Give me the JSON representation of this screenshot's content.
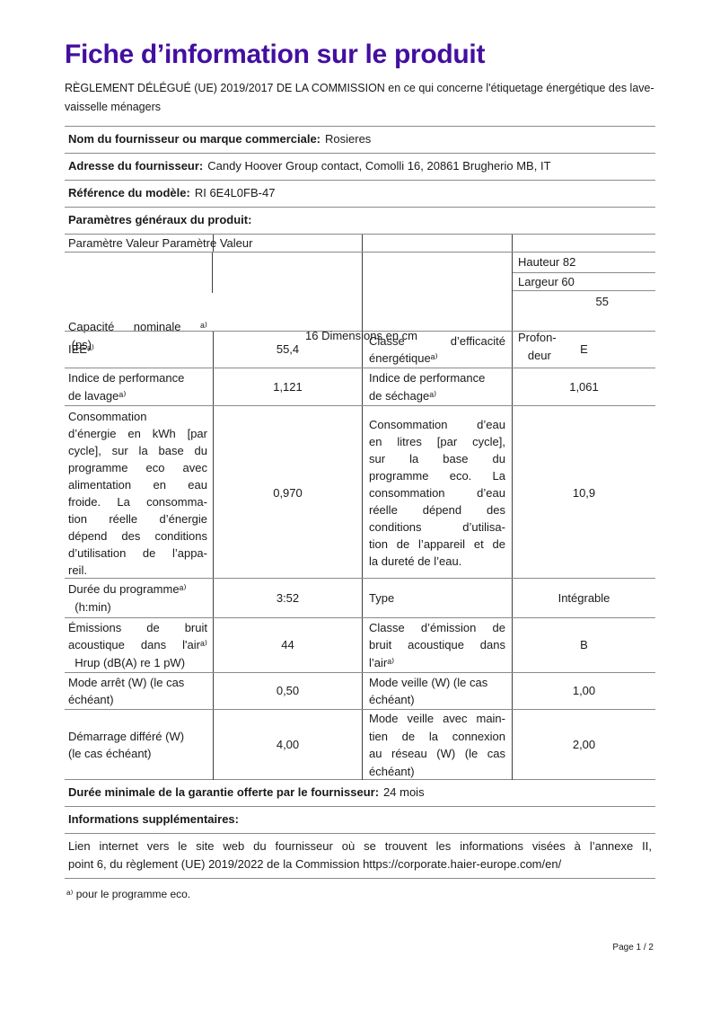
{
  "colors": {
    "title": "#430fa0",
    "text": "#1a1a1a",
    "border_horizontal": "#8a8a8a",
    "border_vertical": "#3f3f3f"
  },
  "header": {
    "title": "Fiche d’information sur le produit",
    "subtitle": "RÈGLEMENT DÉLÉGUÉ (UE) 2019/2017 DE LA COMMISSION en ce qui concerne l'étiquetage énergétique des lave-\nvaisselle ménagers"
  },
  "info_rows": [
    {
      "label": "Nom du fournisseur ou marque commerciale:",
      "value": "Rosieres"
    },
    {
      "label": "Adresse du fournisseur:",
      "value": "Candy Hoover Group contact, Comolli 16, 20861 Brugherio MB, IT"
    },
    {
      "label": "Référence du modèle:",
      "value": "RI 6E4L0FB-47"
    },
    {
      "label": "Paramètres généraux du produit:",
      "value": ""
    }
  ],
  "params_table": {
    "column_header": "Paramètre Valeur Paramètre Valeur",
    "capacity_row": {
      "label": "Capacité nominale ᵃ⁾\n (ps)",
      "center_text": "16 Dimensions en cm",
      "dimensions": {
        "height": "Hauteur 82",
        "width": "Largeur 60",
        "depth_label": "Profon-\n   deur",
        "depth_value": "55"
      }
    },
    "rows": [
      {
        "p1": "IEEᵃ⁾",
        "v1": "55,4",
        "p2": "Classe d’efficacité\nénergétiqueᵃ⁾",
        "v2": "E"
      },
      {
        "p1": "Indice de performance\nde lavageᵃ⁾",
        "v1": "1,121",
        "p2": "Indice de performance\nde séchageᵃ⁾",
        "v2": "1,061"
      },
      {
        "p1": "Consommation\nd’énergie en kWh [par\ncycle], sur la base du\nprogramme eco avec\nalimentation en eau\nfroide. La consomma-\ntion réelle d’énergie\ndépend des conditions\nd’utilisation de l’appa-\nreil.",
        "v1": "0,970",
        "p2": "Consommation d’eau\nen litres [par cycle],\nsur la base du\nprogramme eco. La\nconsommation d’eau\nréelle dépend des\nconditions d’utilisa-\ntion de l’appareil et de\nla dureté de l’eau.",
        "v2": "10,9"
      },
      {
        "p1": "Durée du programmeᵃ⁾\n  (h:min)",
        "v1": "3:52",
        "p2": "Type",
        "v2": "Intégrable"
      },
      {
        "p1": "Émissions de bruit\nacoustique dans l'airᵃ⁾\n  Hrup (dB(A) re 1 pW)",
        "v1": "44",
        "p2": "Classe d’émission de\nbruit acoustique dans\nl’airᵃ⁾",
        "v2": "B"
      },
      {
        "p1": "Mode arrêt (W) (le cas\néchéant)",
        "v1": "0,50",
        "p2": "Mode veille (W) (le cas\néchéant)",
        "v2": "1,00"
      },
      {
        "p1": "Démarrage différé (W)\n(le cas échéant)",
        "v1": "4,00",
        "p2": "Mode veille avec main-\ntien de la connexion\nau réseau (W) (le cas\néchéant)",
        "v2": "2,00"
      }
    ]
  },
  "footer_rows": [
    {
      "label": "Durée minimale de la garantie offerte par le fournisseur:",
      "value": "24 mois"
    },
    {
      "label": "Informations supplémentaires:",
      "value": ""
    },
    {
      "text": "Lien internet vers le site web du fournisseur où se trouvent les informations visées à l’annexe II,\npoint 6, du règlement (UE) 2019/2022 de la Commission https://corporate.haier-europe.com/en/"
    }
  ],
  "footnote": "ᵃ⁾  pour le programme eco.",
  "page_number": "Page 1 / 2"
}
